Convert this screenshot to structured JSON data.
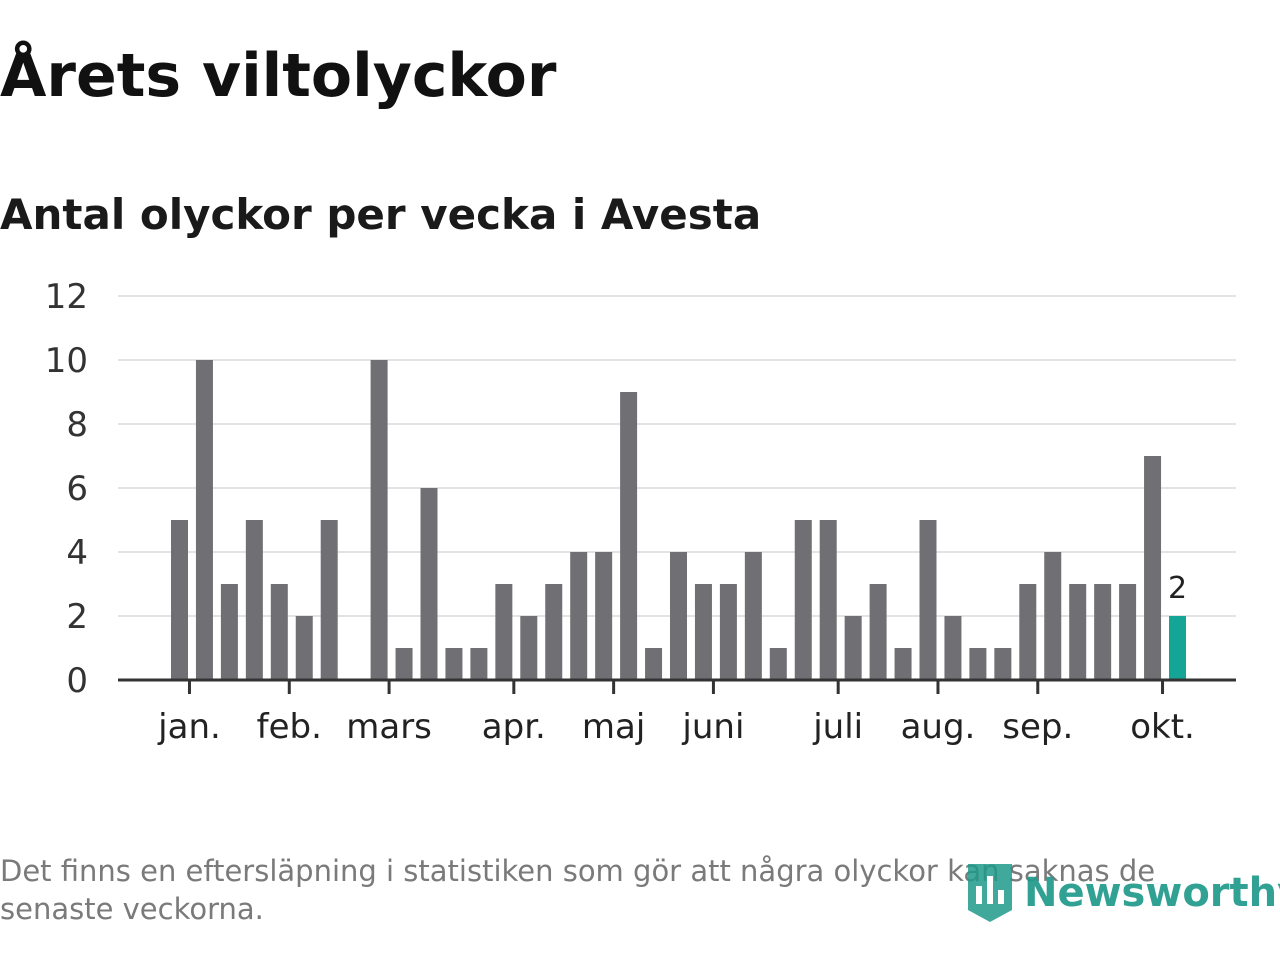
{
  "header": {
    "title": "Årets viltolyckor",
    "subtitle": "Antal olyckor per vecka i Avesta"
  },
  "footer": {
    "note": "Det finns en eftersläpning i statistiken som gör att några olyckor kan saknas de senaste veckorna.",
    "brand": "Newsworthy"
  },
  "colors": {
    "bar": "#706f74",
    "highlight": "#14a597",
    "grid": "#e3e3e3",
    "axis": "#333333",
    "brand": "#1f9a8a"
  },
  "chart_data": {
    "type": "bar",
    "title": "Antal olyckor per vecka i Avesta",
    "xlabel": "",
    "ylabel": "",
    "ylim": [
      0,
      12
    ],
    "yticks": [
      0,
      2,
      4,
      6,
      8,
      10,
      12
    ],
    "grid": true,
    "values": [
      5,
      10,
      3,
      5,
      3,
      2,
      5,
      0,
      10,
      1,
      6,
      1,
      1,
      3,
      2,
      3,
      4,
      4,
      9,
      1,
      4,
      3,
      3,
      4,
      1,
      5,
      5,
      2,
      3,
      1,
      5,
      2,
      1,
      1,
      3,
      4,
      3,
      3,
      3,
      7,
      2
    ],
    "highlight_index": 40,
    "highlight_label": "2",
    "month_ticks": [
      {
        "label": "jan.",
        "week": 0.4
      },
      {
        "label": "feb.",
        "week": 4.4
      },
      {
        "label": "mars",
        "week": 8.4
      },
      {
        "label": "apr.",
        "week": 13.4
      },
      {
        "label": "maj",
        "week": 17.4
      },
      {
        "label": "juni",
        "week": 21.4
      },
      {
        "label": "juli",
        "week": 26.4
      },
      {
        "label": "aug.",
        "week": 30.4
      },
      {
        "label": "sep.",
        "week": 34.4
      },
      {
        "label": "okt.",
        "week": 39.4
      }
    ]
  }
}
